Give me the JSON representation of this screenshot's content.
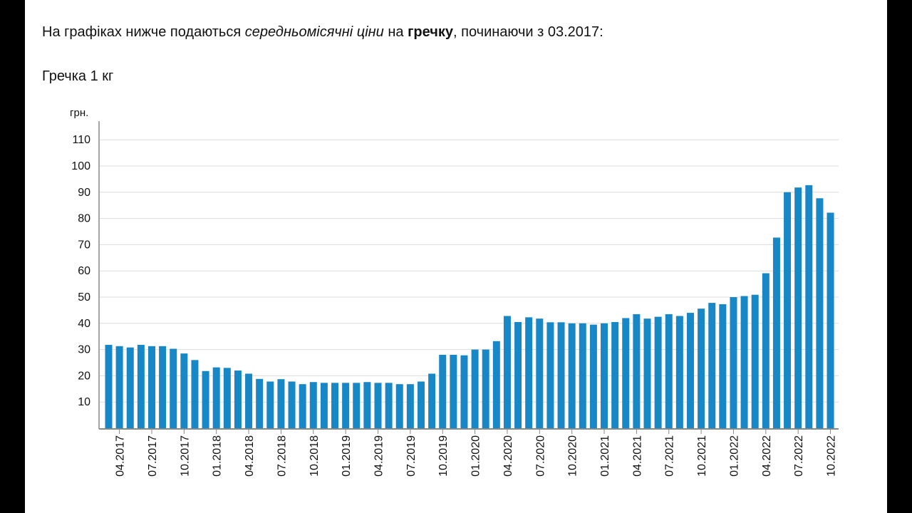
{
  "intro": {
    "part1": "На графіках нижче подаються ",
    "italic": "середньомісячні ціни",
    "part2": " на ",
    "bold": "гречку",
    "part3": ", починаючи з 03.2017:"
  },
  "chart_title": "Гречка 1 кг",
  "chart_data": {
    "type": "bar",
    "title": "Гречка 1 кг",
    "ylabel": "грн.",
    "xlabel": "",
    "ylim": [
      0,
      115
    ],
    "yticks": [
      10,
      20,
      30,
      40,
      50,
      60,
      70,
      80,
      90,
      100,
      110
    ],
    "grid": true,
    "bar_color": "#1787c6",
    "categories": [
      "03.2017",
      "04.2017",
      "05.2017",
      "06.2017",
      "07.2017",
      "08.2017",
      "09.2017",
      "10.2017",
      "11.2017",
      "12.2017",
      "01.2018",
      "02.2018",
      "03.2018",
      "04.2018",
      "05.2018",
      "06.2018",
      "07.2018",
      "08.2018",
      "09.2018",
      "10.2018",
      "11.2018",
      "12.2018",
      "01.2019",
      "02.2019",
      "03.2019",
      "04.2019",
      "05.2019",
      "06.2019",
      "07.2019",
      "08.2019",
      "09.2019",
      "10.2019",
      "11.2019",
      "12.2019",
      "01.2020",
      "02.2020",
      "03.2020",
      "04.2020",
      "05.2020",
      "06.2020",
      "07.2020",
      "08.2020",
      "09.2020",
      "10.2020",
      "11.2020",
      "12.2020",
      "01.2021",
      "02.2021",
      "03.2021",
      "04.2021",
      "05.2021",
      "06.2021",
      "07.2021",
      "08.2021",
      "09.2021",
      "10.2021",
      "11.2021",
      "12.2021",
      "01.2022",
      "02.2022",
      "03.2022",
      "04.2022",
      "05.2022",
      "06.2022",
      "07.2022",
      "08.2022",
      "09.2022",
      "10.2022"
    ],
    "values": [
      31.8,
      31.3,
      30.8,
      31.8,
      31.3,
      31.3,
      30.3,
      28.5,
      26.0,
      21.8,
      23.2,
      23.0,
      22.0,
      20.8,
      18.8,
      17.8,
      18.7,
      17.8,
      16.8,
      17.6,
      17.3,
      17.3,
      17.3,
      17.3,
      17.6,
      17.3,
      17.3,
      16.8,
      16.8,
      17.8,
      20.8,
      28.0,
      28.0,
      27.8,
      30.0,
      30.0,
      33.2,
      42.8,
      40.5,
      42.3,
      41.8,
      40.4,
      40.4,
      40.0,
      40.0,
      39.5,
      40.0,
      40.5,
      42.0,
      43.5,
      41.8,
      42.5,
      43.5,
      42.8,
      44.0,
      45.6,
      47.8,
      47.3,
      50.0,
      50.4,
      50.9,
      59.1,
      72.7,
      90.0,
      91.8,
      92.7,
      87.7,
      82.2
    ],
    "xtick_labels": [
      "04.2017",
      "07.2017",
      "10.2017",
      "01.2018",
      "04.2018",
      "07.2018",
      "10.2018",
      "01.2019",
      "04.2019",
      "07.2019",
      "10.2019",
      "01.2020",
      "04.2020",
      "07.2020",
      "10.2020",
      "01.2021",
      "04.2021",
      "07.2021",
      "10.2021",
      "01.2022",
      "04.2022",
      "07.2022",
      "10.2022"
    ]
  }
}
